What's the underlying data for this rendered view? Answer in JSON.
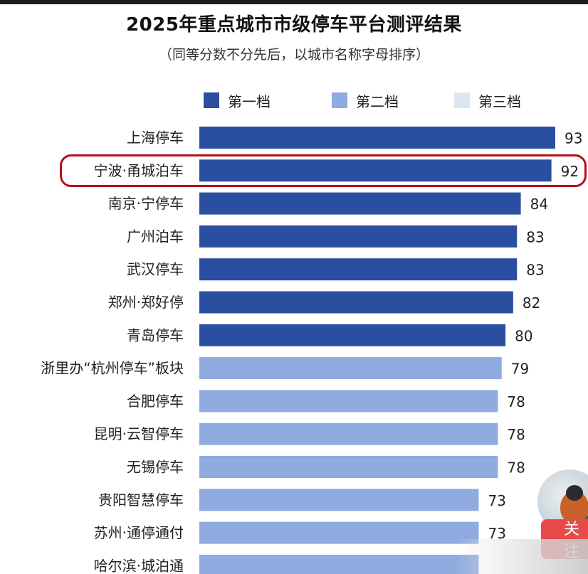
{
  "title": "2025年重点城市市级停车平台测评结果",
  "subtitle": "（同等分数不分先后，以城市名称字母排序）",
  "legend": [
    {
      "label": "第一档",
      "color": "#2b4fa0"
    },
    {
      "label": "第二档",
      "color": "#8fabdf"
    },
    {
      "label": "第三档",
      "color": "#dde5f3"
    }
  ],
  "highlight_label": "宁波·甬城泊车",
  "follow_label": "关注",
  "colors": {
    "tier1": "#2b4fa0",
    "tier2": "#8fabdf",
    "tier3": "#dde5f3",
    "highlight": "#b5101a",
    "follow": "#e84a4a"
  },
  "chart_data": {
    "type": "bar",
    "orientation": "horizontal",
    "title": "2025年重点城市市级停车平台测评结果",
    "subtitle": "（同等分数不分先后，以城市名称字母排序）",
    "xlim": [
      0,
      93
    ],
    "grid": false,
    "legend_position": "top",
    "categories": [
      "上海停车",
      "宁波·甬城泊车",
      "南京·宁停车",
      "广州泊车",
      "武汉停车",
      "郑州·郑好停",
      "青岛停车",
      "浙里办“杭州停车”板块",
      "合肥停车",
      "昆明·云智停车",
      "无锡停车",
      "贵阳智慧停车",
      "苏州·通停通付",
      "哈尔滨·城泊通"
    ],
    "values": [
      93,
      92,
      84,
      83,
      83,
      82,
      80,
      79,
      78,
      78,
      78,
      73,
      73,
      73
    ],
    "value_labels": [
      "93",
      "92",
      "84",
      "83",
      "83",
      "82",
      "80",
      "79",
      "78",
      "78",
      "78",
      "73",
      "73",
      ""
    ],
    "tiers": [
      "第一档",
      "第一档",
      "第一档",
      "第一档",
      "第一档",
      "第一档",
      "第一档",
      "第二档",
      "第二档",
      "第二档",
      "第二档",
      "第二档",
      "第二档",
      "第二档"
    ]
  }
}
